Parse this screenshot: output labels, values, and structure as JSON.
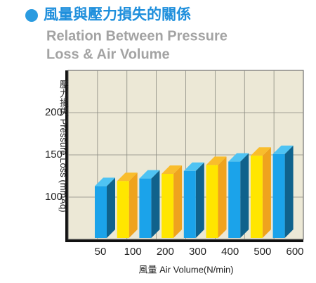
{
  "chart_data": {
    "type": "bar3d",
    "title": "風量與壓力損失的關係",
    "subtitle": [
      "Relation Between Pressure",
      "Loss & Air Volume"
    ],
    "y_label": "壓力損失 Pressure Loss (mmAq)",
    "x_label": "風量 Air Volume(N/min)",
    "x_labels": [
      "50",
      "100",
      "200",
      "300",
      "400",
      "500",
      "600"
    ],
    "values": [
      113,
      119,
      122,
      127.5,
      131,
      138,
      142,
      149,
      151
    ],
    "colors": [
      "#1ba3ea",
      "#ffe600",
      "#1ba3ea",
      "#ffe600",
      "#1ba3ea",
      "#ffe600",
      "#1ba3ea",
      "#ffe600",
      "#1ba3ea"
    ],
    "ylim": [
      50,
      250
    ],
    "yticks": [
      100,
      150,
      200
    ],
    "grid": true
  }
}
